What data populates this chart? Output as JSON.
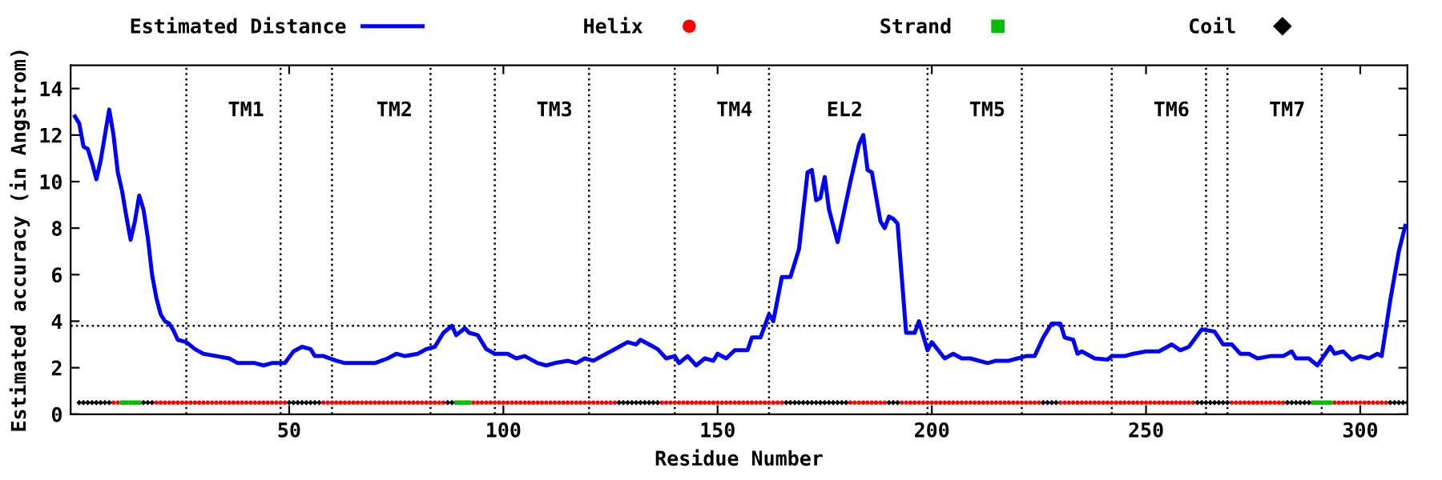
{
  "chart_data": {
    "type": "line",
    "xlabel": "Residue Number",
    "ylabel": "Estimated accuracy (in Angstrom)",
    "xlim": [
      -1,
      311
    ],
    "xticks": [
      50,
      100,
      150,
      200,
      250,
      300
    ],
    "ylim": [
      0,
      15
    ],
    "yticks": [
      0,
      2,
      4,
      6,
      8,
      10,
      12,
      14
    ],
    "legend": "top",
    "grid": false,
    "series": [
      {
        "name": "Estimated Distance",
        "color": "#0000ff",
        "line_style": "solid",
        "marker": "none",
        "x": [
          0,
          1,
          2,
          3,
          4,
          5,
          6,
          7,
          8,
          9,
          10,
          11,
          12,
          13,
          14,
          15,
          16,
          17,
          18,
          19,
          20,
          21,
          22,
          23,
          24,
          26,
          28,
          30,
          33,
          36,
          38,
          42,
          44,
          46,
          49,
          51,
          53,
          55,
          56,
          58,
          61,
          63,
          66,
          70,
          73,
          75,
          77,
          80,
          82,
          84,
          86,
          88,
          89,
          91,
          92,
          94,
          96,
          98,
          101,
          103,
          105,
          108,
          110,
          112,
          115,
          117,
          119,
          121,
          124,
          127,
          129,
          131,
          132,
          134,
          136,
          138,
          140,
          141,
          143,
          145,
          147,
          149,
          150,
          152,
          154,
          157,
          158,
          160,
          162,
          163,
          165,
          167,
          169,
          171,
          172,
          173,
          174,
          175,
          176,
          178,
          181,
          183,
          184,
          185,
          186,
          188,
          189,
          190,
          191,
          192,
          194,
          196,
          197,
          199,
          200,
          203,
          205,
          207,
          209,
          213,
          215,
          218,
          220,
          222,
          224,
          226,
          228,
          230,
          231,
          233,
          234,
          235,
          238,
          241,
          242,
          245,
          247,
          250,
          253,
          256,
          258,
          260,
          263,
          266,
          268,
          270,
          272,
          274,
          276,
          279,
          282,
          284,
          285,
          288,
          290,
          293,
          294,
          296,
          298,
          300,
          302,
          304,
          305,
          307,
          309,
          310.5
        ],
        "values": [
          12.8,
          12.5,
          11.5,
          11.4,
          10.8,
          10.1,
          10.9,
          12.0,
          13.1,
          12.0,
          10.4,
          9.6,
          8.5,
          7.5,
          8.3,
          9.4,
          8.8,
          7.6,
          6.0,
          5.0,
          4.3,
          4.0,
          3.9,
          3.6,
          3.2,
          3.1,
          2.8,
          2.6,
          2.5,
          2.4,
          2.2,
          2.2,
          2.1,
          2.2,
          2.2,
          2.7,
          2.9,
          2.8,
          2.5,
          2.5,
          2.3,
          2.2,
          2.2,
          2.2,
          2.4,
          2.6,
          2.5,
          2.6,
          2.8,
          2.9,
          3.5,
          3.8,
          3.4,
          3.7,
          3.5,
          3.4,
          2.8,
          2.6,
          2.6,
          2.4,
          2.5,
          2.2,
          2.1,
          2.2,
          2.3,
          2.2,
          2.4,
          2.3,
          2.6,
          2.9,
          3.1,
          3.0,
          3.2,
          3.0,
          2.8,
          2.4,
          2.5,
          2.2,
          2.5,
          2.1,
          2.4,
          2.3,
          2.6,
          2.4,
          2.75,
          2.75,
          3.3,
          3.3,
          4.3,
          4.0,
          5.9,
          5.9,
          7.1,
          10.4,
          10.5,
          9.2,
          9.3,
          10.2,
          8.8,
          7.4,
          10.0,
          11.6,
          12.0,
          10.5,
          10.4,
          8.3,
          8.0,
          8.5,
          8.4,
          8.2,
          3.5,
          3.5,
          4.0,
          2.75,
          3.1,
          2.4,
          2.6,
          2.4,
          2.4,
          2.2,
          2.3,
          2.3,
          2.4,
          2.5,
          2.5,
          3.3,
          3.9,
          3.9,
          3.3,
          3.2,
          2.6,
          2.7,
          2.4,
          2.35,
          2.5,
          2.5,
          2.6,
          2.7,
          2.7,
          3.0,
          2.75,
          2.9,
          3.65,
          3.55,
          3.0,
          3.0,
          2.6,
          2.6,
          2.4,
          2.5,
          2.5,
          2.7,
          2.4,
          2.4,
          2.1,
          2.9,
          2.6,
          2.7,
          2.35,
          2.5,
          2.4,
          2.6,
          2.5,
          4.9,
          7.0,
          8.1
        ]
      },
      {
        "name": "Helix",
        "type": "scatter",
        "color": "#ff0000",
        "marker": "circle",
        "x": [
          9,
          10,
          19,
          20,
          21,
          22,
          23,
          24,
          25,
          26,
          27,
          28,
          29,
          30,
          31,
          32,
          33,
          34,
          35,
          36,
          37,
          38,
          39,
          40,
          41,
          42,
          43,
          44,
          45,
          46,
          47,
          48,
          49,
          58,
          59,
          60,
          61,
          62,
          63,
          64,
          65,
          66,
          67,
          68,
          69,
          70,
          71,
          72,
          73,
          74,
          75,
          76,
          77,
          78,
          79,
          80,
          81,
          82,
          83,
          84,
          85,
          86,
          93,
          94,
          95,
          96,
          97,
          98,
          99,
          100,
          101,
          102,
          103,
          104,
          105,
          106,
          107,
          108,
          109,
          110,
          111,
          112,
          113,
          114,
          115,
          116,
          117,
          118,
          119,
          120,
          121,
          122,
          123,
          124,
          125,
          126,
          137,
          138,
          139,
          140,
          141,
          142,
          143,
          144,
          145,
          146,
          147,
          148,
          149,
          150,
          151,
          152,
          153,
          154,
          155,
          156,
          157,
          158,
          159,
          160,
          161,
          162,
          163,
          164,
          165,
          181,
          182,
          183,
          184,
          185,
          186,
          187,
          188,
          189,
          193,
          194,
          195,
          196,
          197,
          198,
          199,
          200,
          201,
          202,
          203,
          204,
          205,
          206,
          207,
          208,
          209,
          210,
          211,
          212,
          213,
          214,
          215,
          216,
          217,
          218,
          219,
          220,
          221,
          222,
          223,
          224,
          225,
          230,
          231,
          232,
          233,
          234,
          235,
          236,
          237,
          238,
          239,
          240,
          241,
          242,
          243,
          244,
          245,
          246,
          247,
          248,
          249,
          250,
          251,
          252,
          253,
          254,
          255,
          256,
          257,
          258,
          259,
          260,
          261,
          270,
          271,
          272,
          273,
          274,
          275,
          276,
          277,
          278,
          279,
          280,
          281,
          282,
          294,
          295,
          296,
          297,
          298,
          299,
          300,
          301,
          302,
          303,
          304,
          305,
          306
        ],
        "values": [
          0.5,
          0.5,
          0.5,
          0.5,
          0.5,
          0.5,
          0.5,
          0.5,
          0.5,
          0.5,
          0.5,
          0.5,
          0.5,
          0.5,
          0.5,
          0.5,
          0.5,
          0.5,
          0.5,
          0.5,
          0.5,
          0.5,
          0.5,
          0.5,
          0.5,
          0.5,
          0.5,
          0.5,
          0.5,
          0.5,
          0.5,
          0.5,
          0.5,
          0.5,
          0.5,
          0.5,
          0.5,
          0.5,
          0.5,
          0.5,
          0.5,
          0.5,
          0.5,
          0.5,
          0.5,
          0.5,
          0.5,
          0.5,
          0.5,
          0.5,
          0.5,
          0.5,
          0.5,
          0.5,
          0.5,
          0.5,
          0.5,
          0.5,
          0.5,
          0.5,
          0.5,
          0.5,
          0.5,
          0.5,
          0.5,
          0.5,
          0.5,
          0.5,
          0.5,
          0.5,
          0.5,
          0.5,
          0.5,
          0.5,
          0.5,
          0.5,
          0.5,
          0.5,
          0.5,
          0.5,
          0.5,
          0.5,
          0.5,
          0.5,
          0.5,
          0.5,
          0.5,
          0.5,
          0.5,
          0.5,
          0.5,
          0.5,
          0.5,
          0.5,
          0.5,
          0.5,
          0.5,
          0.5,
          0.5,
          0.5,
          0.5,
          0.5,
          0.5,
          0.5,
          0.5,
          0.5,
          0.5,
          0.5,
          0.5,
          0.5,
          0.5,
          0.5,
          0.5,
          0.5,
          0.5,
          0.5,
          0.5,
          0.5,
          0.5,
          0.5,
          0.5,
          0.5,
          0.5,
          0.5,
          0.5,
          0.5,
          0.5,
          0.5,
          0.5,
          0.5,
          0.5,
          0.5,
          0.5,
          0.5,
          0.5,
          0.5,
          0.5,
          0.5,
          0.5,
          0.5,
          0.5,
          0.5,
          0.5,
          0.5,
          0.5,
          0.5,
          0.5,
          0.5,
          0.5,
          0.5,
          0.5,
          0.5,
          0.5,
          0.5,
          0.5,
          0.5,
          0.5,
          0.5,
          0.5,
          0.5,
          0.5,
          0.5,
          0.5,
          0.5,
          0.5,
          0.5,
          0.5,
          0.5,
          0.5,
          0.5,
          0.5,
          0.5,
          0.5,
          0.5,
          0.5,
          0.5,
          0.5,
          0.5,
          0.5,
          0.5,
          0.5,
          0.5,
          0.5,
          0.5,
          0.5,
          0.5,
          0.5,
          0.5,
          0.5,
          0.5,
          0.5,
          0.5,
          0.5,
          0.5,
          0.5,
          0.5,
          0.5,
          0.5,
          0.5,
          0.5,
          0.5,
          0.5,
          0.5,
          0.5,
          0.5,
          0.5,
          0.5,
          0.5,
          0.5,
          0.5,
          0.5,
          0.5,
          0.5,
          0.5,
          0.5,
          0.5,
          0.5,
          0.5,
          0.5,
          0.5,
          0.5,
          0.5,
          0.5,
          0.5,
          0.5
        ]
      },
      {
        "name": "Strand",
        "type": "scatter",
        "color": "#00c000",
        "marker": "square",
        "x": [
          11,
          12,
          13,
          14,
          15,
          89,
          90,
          91,
          92,
          289,
          290,
          291,
          292,
          293
        ],
        "values": [
          0.5,
          0.5,
          0.5,
          0.5,
          0.5,
          0.5,
          0.5,
          0.5,
          0.5,
          0.5,
          0.5,
          0.5,
          0.5,
          0.5
        ]
      },
      {
        "name": "Coil",
        "type": "scatter",
        "color": "#000000",
        "marker": "diamond",
        "x": [
          1,
          2,
          3,
          4,
          5,
          6,
          7,
          8,
          16,
          17,
          18,
          50,
          51,
          52,
          53,
          54,
          55,
          56,
          57,
          87,
          88,
          127,
          128,
          129,
          130,
          131,
          132,
          133,
          134,
          135,
          136,
          166,
          167,
          168,
          169,
          170,
          171,
          172,
          173,
          174,
          175,
          176,
          177,
          178,
          179,
          180,
          190,
          191,
          192,
          226,
          227,
          228,
          229,
          262,
          263,
          264,
          265,
          266,
          267,
          268,
          269,
          283,
          284,
          285,
          286,
          287,
          288,
          307,
          308,
          309,
          310,
          311
        ],
        "values": [
          0.5,
          0.5,
          0.5,
          0.5,
          0.5,
          0.5,
          0.5,
          0.5,
          0.5,
          0.5,
          0.5,
          0.5,
          0.5,
          0.5,
          0.5,
          0.5,
          0.5,
          0.5,
          0.5,
          0.5,
          0.5,
          0.5,
          0.5,
          0.5,
          0.5,
          0.5,
          0.5,
          0.5,
          0.5,
          0.5,
          0.5,
          0.5,
          0.5,
          0.5,
          0.5,
          0.5,
          0.5,
          0.5,
          0.5,
          0.5,
          0.5,
          0.5,
          0.5,
          0.5,
          0.5,
          0.5,
          0.5,
          0.5,
          0.5,
          0.5,
          0.5,
          0.5,
          0.5,
          0.5,
          0.5,
          0.5,
          0.5,
          0.5,
          0.5,
          0.5,
          0.5,
          0.5,
          0.5,
          0.5,
          0.5,
          0.5,
          0.5,
          0.5,
          0.5,
          0.5,
          0.5,
          0.5
        ]
      }
    ],
    "ref_lines": [
      {
        "axis": "y",
        "value": 3.8,
        "color": "#000000",
        "line_style": "dotted"
      },
      {
        "axis": "x",
        "value": 26,
        "label": "TM1",
        "color": "#000000",
        "line_style": "dotted"
      },
      {
        "axis": "x",
        "value": 48,
        "color": "#000000",
        "line_style": "dotted"
      },
      {
        "axis": "x",
        "value": 60,
        "label": "TM2",
        "color": "#000000",
        "line_style": "dotted"
      },
      {
        "axis": "x",
        "value": 83,
        "color": "#000000",
        "line_style": "dotted"
      },
      {
        "axis": "x",
        "value": 98,
        "label": "TM3",
        "color": "#000000",
        "line_style": "dotted"
      },
      {
        "axis": "x",
        "value": 120,
        "color": "#000000",
        "line_style": "dotted"
      },
      {
        "axis": "x",
        "value": 140,
        "label": "TM4",
        "color": "#000000",
        "line_style": "dotted"
      },
      {
        "axis": "x",
        "value": 162,
        "label": "EL2",
        "color": "#000000",
        "line_style": "dotted"
      },
      {
        "axis": "x",
        "value": 199,
        "label": "TM5",
        "color": "#000000",
        "line_style": "dotted"
      },
      {
        "axis": "x",
        "value": 221,
        "color": "#000000",
        "line_style": "dotted"
      },
      {
        "axis": "x",
        "value": 242,
        "label": "TM6",
        "color": "#000000",
        "line_style": "dotted"
      },
      {
        "axis": "x",
        "value": 264,
        "color": "#000000",
        "line_style": "dotted"
      },
      {
        "axis": "x",
        "value": 269,
        "label": "TM7",
        "color": "#000000",
        "line_style": "dotted"
      },
      {
        "axis": "x",
        "value": 291,
        "color": "#000000",
        "line_style": "dotted"
      }
    ]
  }
}
